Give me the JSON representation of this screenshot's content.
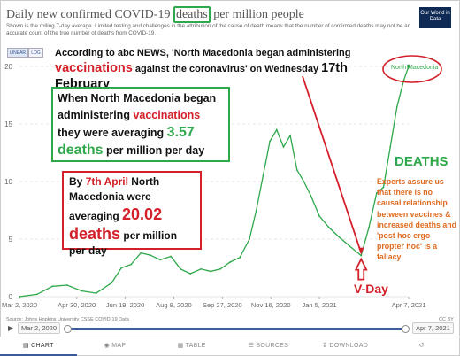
{
  "header": {
    "title_before": "Daily new confirmed COVID-19 ",
    "title_boxed": "deaths",
    "title_after": " per million people",
    "subtitle": "Shown is the rolling 7-day average. Limited testing and challenges in the attribution of the cause of death means that the number of confirmed deaths may not be an accurate count of the true number of deaths from COVID-19.",
    "logo": "Our World in Data"
  },
  "toggles": {
    "linear": "LINEAR",
    "log": "LOG"
  },
  "annotations": {
    "abc_1": "According to abc NEWS, 'North Macedonia",
    "abc_2": " began administering",
    "abc_vacc": "vaccinations",
    "abc_3": " against the coronavirus' on Wednesday ",
    "abc_date": "17th February",
    "began_1": "When North Macedonia began administering ",
    "began_vacc": "vaccinations",
    "began_2": " they were averaging ",
    "began_value": "3.57 deaths",
    "began_3": " per million per day",
    "april_1": "By ",
    "april_date": "7th April",
    "april_2": " North Macedonia were averaging ",
    "april_value": "20.02 deaths",
    "april_3": " per million per day",
    "deaths_label": "DEATHS",
    "experts": "Experts assure us that there is no causal relationship between vaccines & increased deaths and 'post hoc ergo propter hoc' is a fallacy",
    "vday": "V-Day"
  },
  "colors": {
    "line": "#2ea84b",
    "red": "#d3202a",
    "orange": "#e06b1e",
    "green": "#2ea84b",
    "accent": "#3b5b9b"
  },
  "footer": {
    "source": "Source: Johns Hopkins University CSSE COVID-19 Data",
    "license": "CC BY"
  },
  "timeline": {
    "start": "Mar 2, 2020",
    "end": "Apr 7, 2021"
  },
  "tabs": [
    {
      "label": "CHART",
      "icon": "chart-icon"
    },
    {
      "label": "MAP",
      "icon": "map-icon"
    },
    {
      "label": "TABLE",
      "icon": "table-icon"
    },
    {
      "label": "SOURCES",
      "icon": "sources-icon"
    },
    {
      "label": "DOWNLOAD",
      "icon": "download-icon"
    },
    {
      "label": "",
      "icon": "share-icon"
    }
  ],
  "chart_data": {
    "type": "line",
    "title": "Daily new confirmed COVID-19 deaths per million people",
    "series": [
      {
        "name": "North Macedonia",
        "x": [
          "2020-03-02",
          "2020-03-20",
          "2020-04-05",
          "2020-04-20",
          "2020-05-05",
          "2020-05-20",
          "2020-06-05",
          "2020-06-15",
          "2020-06-25",
          "2020-07-05",
          "2020-07-15",
          "2020-07-25",
          "2020-08-05",
          "2020-08-15",
          "2020-08-25",
          "2020-09-05",
          "2020-09-15",
          "2020-09-25",
          "2020-10-05",
          "2020-10-15",
          "2020-10-25",
          "2020-11-01",
          "2020-11-08",
          "2020-11-15",
          "2020-11-22",
          "2020-11-29",
          "2020-12-06",
          "2020-12-13",
          "2020-12-20",
          "2020-12-27",
          "2021-01-05",
          "2021-01-15",
          "2021-01-25",
          "2021-02-05",
          "2021-02-17",
          "2021-02-25",
          "2021-03-05",
          "2021-03-12",
          "2021-03-19",
          "2021-03-26",
          "2021-04-02",
          "2021-04-07"
        ],
        "values": [
          0.0,
          0.2,
          0.9,
          1.0,
          0.5,
          0.3,
          1.2,
          2.5,
          2.8,
          3.8,
          3.6,
          3.2,
          3.5,
          2.4,
          2.0,
          2.4,
          2.2,
          2.4,
          3.0,
          3.4,
          5.0,
          7.5,
          10.5,
          13.5,
          14.5,
          13.0,
          14.0,
          11.0,
          10.0,
          8.8,
          7.0,
          6.0,
          5.2,
          4.4,
          3.57,
          6.0,
          9.0,
          9.5,
          13.0,
          16.5,
          18.8,
          20.02
        ]
      }
    ],
    "x_ticks": [
      "Mar 2, 2020",
      "Apr 30, 2020",
      "Jun 19, 2020",
      "Aug 8, 2020",
      "Sep 27, 2020",
      "Nov 16, 2020",
      "Jan 5, 2021",
      "Apr 7, 2021"
    ],
    "y_ticks": [
      0,
      5,
      10,
      15,
      20
    ],
    "ylim": [
      0,
      20
    ],
    "xlim": [
      "2020-03-02",
      "2021-04-07"
    ],
    "scale": "linear",
    "grid": "horizontal dashed",
    "vline_date": "2021-02-17",
    "circled_point": "2021-04-07"
  }
}
